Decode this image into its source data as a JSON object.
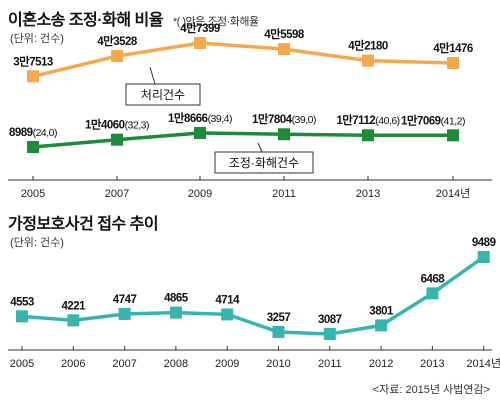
{
  "chart_data": [
    {
      "type": "line",
      "title": "이혼소송 조정·화해 비율",
      "note": "*(  )안은 조정·화해율",
      "unit": "(단위: 건수)",
      "categories": [
        "2005",
        "2007",
        "2009",
        "2011",
        "2013",
        "2014년"
      ],
      "series": [
        {
          "name": "처리건수",
          "values": [
            37513,
            43528,
            47399,
            45598,
            42180,
            41476
          ],
          "labels": [
            "3만7513",
            "4만3528",
            "4만7399",
            "4만5598",
            "4만2180",
            "4만1476"
          ],
          "color": "#f5a84c"
        },
        {
          "name": "조정·화해건수",
          "values": [
            8989,
            14060,
            18666,
            17804,
            17112,
            17069
          ],
          "labels": [
            "8989",
            "1만4060",
            "1만8666",
            "1만7804",
            "1만7112",
            "1만7069"
          ],
          "rates": [
            "(24,0)",
            "(32,3)",
            "(39,4)",
            "(39,0)",
            "(40,6)",
            "(41,2)"
          ],
          "color": "#1e8a3a"
        }
      ]
    },
    {
      "type": "line",
      "title": "가정보호사건 접수 추이",
      "unit": "(단위: 건수)",
      "categories": [
        "2005",
        "2006",
        "2007",
        "2008",
        "2009",
        "2010",
        "2011",
        "2012",
        "2013",
        "2014년"
      ],
      "series": [
        {
          "values": [
            4553,
            4221,
            4747,
            4865,
            4714,
            3257,
            3087,
            3801,
            6468,
            9489
          ],
          "color": "#35b5ae"
        }
      ],
      "source": "<자료: 2015년 사법연감>"
    }
  ]
}
